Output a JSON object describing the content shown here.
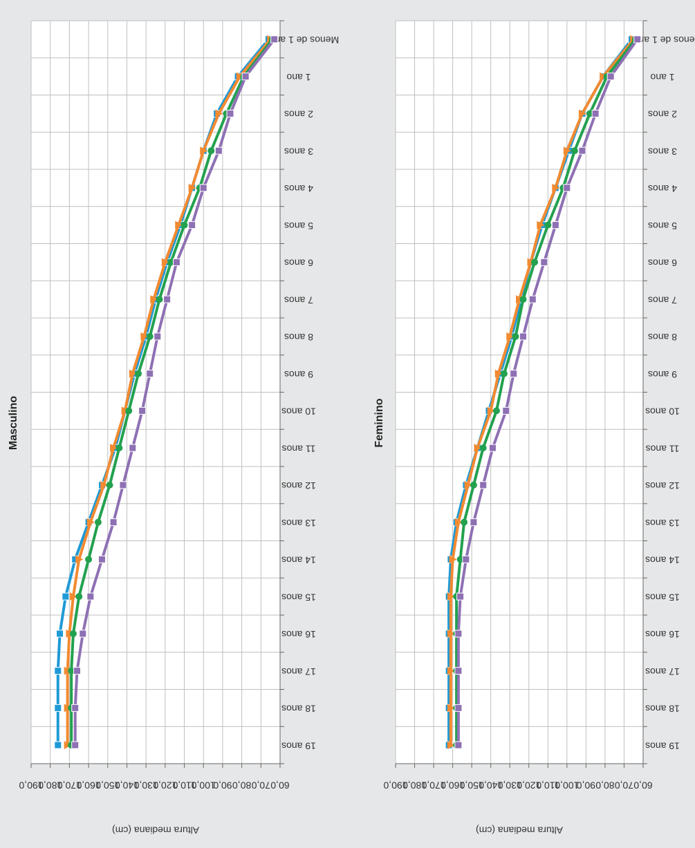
{
  "chart_data": [
    {
      "type": "line",
      "title": "Masculino",
      "xlabel": "",
      "ylabel": "Altura mediana (cm)",
      "ylim": [
        60,
        190
      ],
      "yticks": [
        "60,0",
        "70,0",
        "80,0",
        "90,0",
        "100,0",
        "110,0",
        "120,0",
        "130,0",
        "140,0",
        "150,0",
        "160,0",
        "170,0",
        "180,0",
        "190,0"
      ],
      "categories": [
        "Menos de 1 ano",
        "1 ano",
        "2 anos",
        "3 anos",
        "4 anos",
        "5 anos",
        "6 anos",
        "7 anos",
        "8 anos",
        "9 anos",
        "10 anos",
        "11 anos",
        "12 anos",
        "13 anos",
        "14 anos",
        "15 anos",
        "16 anos",
        "17 anos",
        "18 anos",
        "19 anos"
      ],
      "grid": true,
      "series": [
        {
          "color": "#1f9ad6",
          "marker": "square",
          "values": [
            66,
            82,
            93,
            100,
            106,
            112,
            119,
            125,
            130,
            136,
            141,
            146,
            153,
            160,
            167,
            172,
            175,
            176,
            176,
            176
          ]
        },
        {
          "color": "#f28a31",
          "marker": "triangle",
          "values": [
            65,
            81,
            92,
            100,
            106,
            113,
            120,
            126,
            131,
            137,
            141,
            147,
            152,
            159,
            165,
            168,
            170,
            171,
            171,
            171
          ]
        },
        {
          "color": "#23a14f",
          "marker": "circle",
          "values": [
            64,
            79,
            88,
            96,
            102,
            110,
            117,
            123,
            128,
            134,
            139,
            144,
            149,
            155,
            160,
            165,
            168,
            169,
            169,
            169
          ]
        },
        {
          "color": "#8e70b4",
          "marker": "square",
          "values": [
            63,
            78,
            86,
            92,
            100,
            106,
            114,
            119,
            124,
            128,
            132,
            137,
            142,
            147,
            153,
            159,
            163,
            166,
            167,
            167
          ]
        }
      ]
    },
    {
      "type": "line",
      "title": "Feminino",
      "xlabel": "",
      "ylabel": "Altura mediana (cm)",
      "ylim": [
        60,
        190
      ],
      "yticks": [
        "60,0",
        "70,0",
        "80,0",
        "90,0",
        "100,0",
        "110,0",
        "120,0",
        "130,0",
        "140,0",
        "150,0",
        "160,0",
        "170,0",
        "180,0",
        "190,0"
      ],
      "categories": [
        "Menos de 1 ano",
        "1 ano",
        "2 anos",
        "3 anos",
        "4 anos",
        "5 anos",
        "6 anos",
        "7 anos",
        "8 anos",
        "9 anos",
        "10 anos",
        "11 anos",
        "12 anos",
        "13 anos",
        "14 anos",
        "15 anos",
        "16 anos",
        "17 anos",
        "18 anos",
        "19 anos"
      ],
      "grid": true,
      "series": [
        {
          "color": "#1f9ad6",
          "marker": "square",
          "values": [
            66,
            81,
            92,
            99,
            106,
            113,
            119,
            124,
            129,
            135,
            141,
            147,
            153,
            158,
            161,
            162,
            162,
            162,
            162,
            162
          ]
        },
        {
          "color": "#f28a31",
          "marker": "triangle",
          "values": [
            65,
            81,
            92,
            100,
            106,
            114,
            119,
            125,
            130,
            136,
            140,
            147,
            152,
            157,
            160,
            161,
            161,
            161,
            161,
            161
          ]
        },
        {
          "color": "#23a14f",
          "marker": "circle",
          "values": [
            64,
            79,
            88,
            96,
            102,
            110,
            117,
            123,
            127,
            133,
            137,
            144,
            149,
            154,
            156,
            158,
            158,
            158,
            158,
            158
          ]
        },
        {
          "color": "#8e70b4",
          "marker": "square",
          "values": [
            63,
            77,
            85,
            92,
            100,
            106,
            112,
            118,
            123,
            128,
            132,
            139,
            144,
            149,
            153,
            156,
            157,
            157,
            157,
            157
          ]
        }
      ]
    }
  ]
}
